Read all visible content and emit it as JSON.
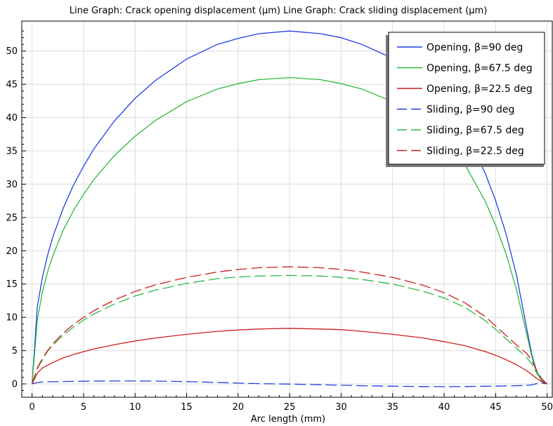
{
  "chart_data": {
    "type": "line",
    "title": "Line Graph: Crack opening displacement (µm)  Line Graph: Crack sliding displacement (µm)",
    "xlabel": "Arc length (mm)",
    "ylabel": "",
    "xlim": [
      -1,
      50.5
    ],
    "ylim": [
      -2,
      54.5
    ],
    "xticks": [
      "0",
      "5",
      "10",
      "15",
      "20",
      "25",
      "30",
      "35",
      "40",
      "45",
      "50"
    ],
    "yticks": [
      "0",
      "5",
      "10",
      "15",
      "20",
      "25",
      "30",
      "35",
      "40",
      "45",
      "50"
    ],
    "grid": true,
    "legend_position": "top-right",
    "x": [
      0,
      0.5,
      1,
      1.5,
      2,
      3,
      4,
      5,
      6,
      8,
      10,
      12,
      15,
      18,
      20,
      22,
      25,
      28,
      30,
      32,
      35,
      38,
      40,
      42,
      44,
      45,
      46,
      47,
      48,
      48.5,
      49,
      49.5,
      50
    ],
    "series": [
      {
        "name": "Opening, β=90 deg",
        "color": "#1f3fe0",
        "dash": "solid",
        "values": [
          0,
          11.5,
          16.0,
          19.3,
          22.0,
          26.3,
          29.8,
          32.7,
          35.3,
          39.5,
          42.9,
          45.6,
          48.8,
          51.0,
          51.9,
          52.6,
          53.0,
          52.6,
          52.0,
          51.0,
          48.9,
          45.6,
          42.5,
          38.0,
          31.6,
          27.5,
          22.6,
          16.5,
          8.5,
          4.5,
          1.8,
          0.5,
          0
        ]
      },
      {
        "name": "Opening, β=67.5 deg",
        "color": "#2db83d",
        "dash": "solid",
        "values": [
          0,
          9.5,
          13.8,
          16.8,
          19.2,
          23.0,
          26.0,
          28.5,
          30.7,
          34.3,
          37.2,
          39.6,
          42.4,
          44.3,
          45.1,
          45.7,
          46.0,
          45.7,
          45.1,
          44.3,
          42.4,
          39.6,
          36.9,
          33.0,
          27.4,
          23.8,
          19.6,
          14.3,
          7.6,
          4.2,
          1.6,
          0.4,
          0
        ]
      },
      {
        "name": "Opening, β=22.5 deg",
        "color": "#cc1f1f",
        "dash": "solid",
        "values": [
          0,
          1.6,
          2.4,
          2.8,
          3.2,
          3.9,
          4.4,
          4.85,
          5.25,
          5.9,
          6.45,
          6.9,
          7.45,
          7.9,
          8.1,
          8.25,
          8.35,
          8.25,
          8.15,
          7.9,
          7.45,
          6.9,
          6.35,
          5.75,
          4.85,
          4.3,
          3.65,
          2.9,
          2.0,
          1.4,
          0.8,
          0.3,
          0
        ]
      },
      {
        "name": "Sliding, β=90 deg",
        "color": "#1f3fe0",
        "dash": "long",
        "values": [
          0,
          0.2,
          0.3,
          0.32,
          0.33,
          0.36,
          0.38,
          0.4,
          0.42,
          0.43,
          0.43,
          0.42,
          0.35,
          0.22,
          0.12,
          0.05,
          -0.03,
          -0.12,
          -0.2,
          -0.27,
          -0.35,
          -0.4,
          -0.42,
          -0.4,
          -0.35,
          -0.33,
          -0.3,
          -0.27,
          -0.22,
          -0.15,
          0.05,
          0.12,
          0
        ]
      },
      {
        "name": "Sliding, β=67.5 deg",
        "color": "#2db83d",
        "dash": "long",
        "values": [
          0,
          2.3,
          3.6,
          4.9,
          5.8,
          7.3,
          8.5,
          9.6,
          10.5,
          12.0,
          13.2,
          14.1,
          15.1,
          15.8,
          16.05,
          16.2,
          16.3,
          16.2,
          16.0,
          15.7,
          15.0,
          13.9,
          12.9,
          11.5,
          9.5,
          8.2,
          6.8,
          5.4,
          4.0,
          3.0,
          1.6,
          0.6,
          0
        ]
      },
      {
        "name": "Sliding, β=22.5 deg",
        "color": "#cc1f1f",
        "dash": "long",
        "values": [
          0,
          2.4,
          3.8,
          5.0,
          6.0,
          7.6,
          8.9,
          10.0,
          11.0,
          12.6,
          13.9,
          14.9,
          16.0,
          16.8,
          17.2,
          17.45,
          17.6,
          17.45,
          17.2,
          16.8,
          16.0,
          14.8,
          13.7,
          12.2,
          10.1,
          8.7,
          7.3,
          5.9,
          4.6,
          3.5,
          2.0,
          0.7,
          0
        ]
      }
    ]
  }
}
